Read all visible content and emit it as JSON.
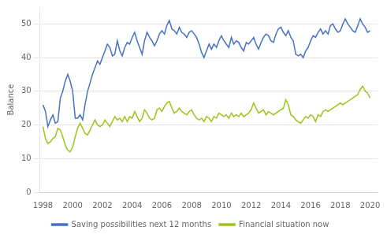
{
  "chart_data": {
    "type": "line",
    "title": "",
    "ylabel": "Balance",
    "x": [
      1998.0,
      1998.17,
      1998.33,
      1998.5,
      1998.67,
      1998.83,
      1999.0,
      1999.17,
      1999.33,
      1999.5,
      1999.67,
      1999.83,
      2000.0,
      2000.17,
      2000.33,
      2000.5,
      2000.67,
      2000.83,
      2001.0,
      2001.17,
      2001.33,
      2001.5,
      2001.67,
      2001.83,
      2002.0,
      2002.17,
      2002.33,
      2002.5,
      2002.67,
      2002.83,
      2003.0,
      2003.17,
      2003.33,
      2003.5,
      2003.67,
      2003.83,
      2004.0,
      2004.17,
      2004.33,
      2004.5,
      2004.67,
      2004.83,
      2005.0,
      2005.17,
      2005.33,
      2005.5,
      2005.67,
      2005.83,
      2006.0,
      2006.17,
      2006.33,
      2006.5,
      2006.67,
      2006.83,
      2007.0,
      2007.17,
      2007.33,
      2007.5,
      2007.67,
      2007.83,
      2008.0,
      2008.17,
      2008.33,
      2008.5,
      2008.67,
      2008.83,
      2009.0,
      2009.17,
      2009.33,
      2009.5,
      2009.67,
      2009.83,
      2010.0,
      2010.17,
      2010.33,
      2010.5,
      2010.67,
      2010.83,
      2011.0,
      2011.17,
      2011.33,
      2011.5,
      2011.67,
      2011.83,
      2012.0,
      2012.17,
      2012.33,
      2012.5,
      2012.67,
      2012.83,
      2013.0,
      2013.17,
      2013.33,
      2013.5,
      2013.67,
      2013.83,
      2014.0,
      2014.17,
      2014.33,
      2014.5,
      2014.67,
      2014.83,
      2015.0,
      2015.17,
      2015.33,
      2015.5,
      2015.67,
      2015.83,
      2016.0,
      2016.17,
      2016.33,
      2016.5,
      2016.67,
      2016.83,
      2017.0,
      2017.17,
      2017.33,
      2017.5,
      2017.67,
      2017.83,
      2018.0,
      2018.17,
      2018.33,
      2018.5,
      2018.67,
      2018.83,
      2019.0,
      2019.17,
      2019.33,
      2019.5,
      2019.67,
      2019.83,
      2020.0
    ],
    "series": [
      {
        "name": "Saving possibilities next 12 months",
        "color": "#4472C4",
        "values": [
          26.0,
          24.0,
          19.5,
          21.5,
          23.0,
          20.5,
          21.0,
          28.0,
          30.0,
          33.0,
          35.0,
          33.0,
          30.0,
          22.0,
          22.0,
          23.0,
          21.5,
          26.0,
          30.0,
          32.5,
          35.0,
          37.0,
          39.0,
          38.0,
          40.0,
          42.0,
          44.0,
          43.0,
          40.5,
          41.0,
          45.0,
          42.0,
          40.5,
          43.0,
          44.5,
          44.0,
          46.0,
          47.5,
          45.0,
          43.0,
          41.0,
          45.0,
          47.5,
          46.0,
          45.0,
          43.5,
          45.0,
          47.0,
          48.0,
          47.0,
          49.5,
          51.0,
          48.5,
          48.0,
          47.0,
          49.0,
          47.5,
          47.0,
          46.0,
          47.5,
          48.0,
          47.0,
          46.0,
          44.0,
          41.5,
          40.0,
          42.0,
          44.0,
          42.5,
          44.0,
          43.0,
          45.0,
          46.5,
          45.0,
          44.0,
          43.0,
          46.0,
          44.0,
          45.0,
          44.5,
          43.0,
          42.0,
          44.5,
          44.0,
          45.0,
          46.0,
          44.0,
          42.5,
          44.5,
          46.0,
          47.0,
          46.5,
          45.0,
          44.5,
          47.0,
          48.5,
          49.0,
          47.5,
          46.5,
          48.0,
          46.0,
          45.0,
          41.0,
          40.5,
          41.0,
          40.0,
          42.0,
          43.0,
          45.0,
          46.5,
          46.0,
          47.5,
          48.5,
          47.0,
          48.0,
          47.0,
          49.5,
          50.0,
          48.5,
          47.5,
          48.0,
          50.0,
          51.5,
          50.0,
          49.0,
          48.0,
          47.5,
          49.5,
          51.5,
          50.0,
          49.0,
          47.5,
          48.0
        ]
      },
      {
        "name": "Financial situation now",
        "color": "#9DC319",
        "values": [
          19.5,
          16.0,
          14.5,
          15.0,
          16.0,
          16.5,
          19.0,
          18.5,
          16.5,
          14.0,
          12.5,
          12.0,
          13.5,
          16.5,
          19.0,
          20.5,
          19.0,
          17.5,
          17.0,
          18.5,
          20.0,
          21.5,
          20.0,
          19.5,
          20.0,
          21.5,
          20.5,
          19.5,
          21.0,
          22.5,
          21.5,
          22.0,
          21.0,
          22.5,
          21.0,
          22.5,
          22.0,
          24.0,
          22.5,
          21.0,
          22.0,
          24.5,
          23.5,
          22.0,
          21.5,
          22.0,
          24.5,
          25.0,
          24.0,
          25.5,
          26.5,
          27.0,
          25.0,
          23.5,
          24.0,
          25.0,
          24.0,
          23.5,
          23.0,
          24.0,
          24.5,
          23.0,
          22.0,
          21.5,
          22.0,
          21.0,
          22.5,
          22.0,
          21.0,
          22.5,
          22.0,
          23.5,
          23.0,
          22.5,
          23.0,
          22.0,
          23.5,
          22.5,
          23.0,
          22.5,
          23.5,
          22.5,
          23.0,
          23.5,
          24.5,
          26.5,
          25.0,
          23.5,
          24.0,
          24.5,
          23.0,
          24.0,
          23.5,
          23.0,
          23.5,
          24.0,
          24.5,
          25.0,
          27.5,
          26.0,
          23.0,
          22.5,
          21.5,
          21.0,
          20.5,
          21.5,
          22.5,
          22.0,
          23.0,
          22.5,
          21.0,
          23.0,
          22.5,
          24.0,
          24.5,
          24.0,
          24.5,
          25.0,
          25.5,
          26.0,
          26.5,
          26.0,
          26.5,
          27.0,
          27.5,
          28.0,
          28.5,
          29.0,
          30.5,
          31.5,
          30.0,
          29.5,
          28.0
        ]
      }
    ],
    "xlim": [
      1997.8,
      2020.5
    ],
    "xticks": [
      1998,
      2000,
      2002,
      2004,
      2006,
      2008,
      2010,
      2012,
      2014,
      2016,
      2018,
      2020
    ],
    "ylim": [
      0,
      55
    ],
    "yticks": [
      0,
      10,
      20,
      30,
      40,
      50
    ],
    "grid": "y",
    "legend": "bottom"
  }
}
